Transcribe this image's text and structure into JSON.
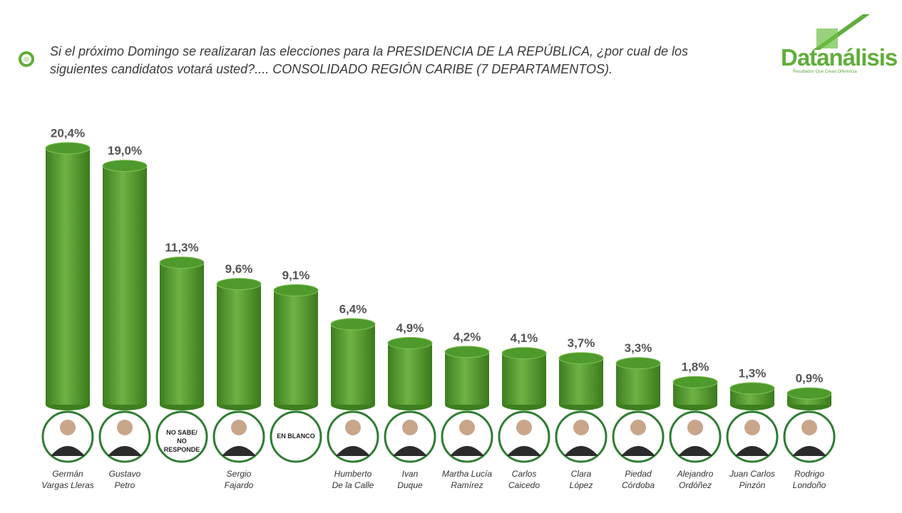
{
  "chart_data": {
    "type": "bar",
    "title": "Si el próximo Domingo se realizaran las elecciones para la PRESIDENCIA DE LA REPÚBLICA, ¿por cual de los siguientes candidatos votará usted?.... CONSOLIDADO REGIÓN CARIBE (7 DEPARTAMENTOS).",
    "brand": "Datanálisis",
    "tagline": "Resultados Que Crean Diferencia",
    "categories": [
      "Germán\nVargas Lleras",
      "Gustavo\nPetro",
      "NO SABE/\nNO RESPONDE",
      "Sergio\nFajardo",
      "EN BLANCO",
      "Humberto\nDe la Calle",
      "Ivan\nDuque",
      "Martha Lucía\nRamírez",
      "Carlos\nCaicedo",
      "Clara\nLópez",
      "Piedad\nCórdoba",
      "Alejandro\nOrdóñez",
      "Juan Carlos\nPinzón",
      "Rodrigo\nLondoño"
    ],
    "values": [
      20.4,
      19.0,
      11.3,
      9.6,
      9.1,
      6.4,
      4.9,
      4.2,
      4.1,
      3.7,
      3.3,
      1.8,
      1.3,
      0.9
    ],
    "value_labels": [
      "20,4%",
      "19,0%",
      "11,3%",
      "9,6%",
      "9,1%",
      "6,4%",
      "4,9%",
      "4,2%",
      "4,1%",
      "3,7%",
      "3,3%",
      "1,8%",
      "1,3%",
      "0,9%"
    ],
    "color": "#4f9a2c"
  }
}
